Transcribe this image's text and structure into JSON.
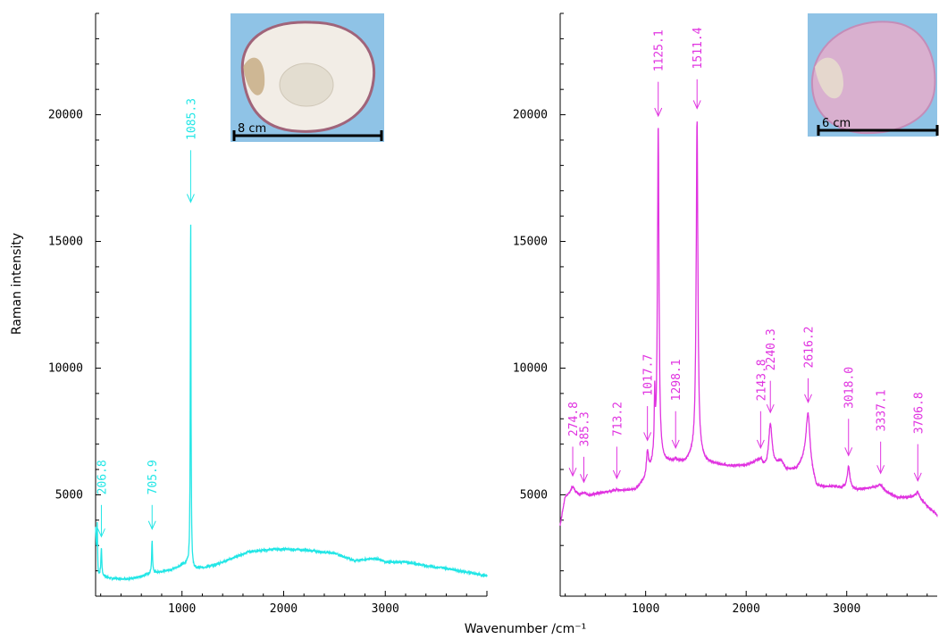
{
  "chart_data": [
    {
      "type": "line",
      "color": "#22e6e6",
      "xlim": [
        150,
        4000
      ],
      "ylim": [
        1000,
        24000
      ],
      "xticks": [
        1000,
        2000,
        3000
      ],
      "yticks": [
        5000,
        10000,
        15000,
        20000
      ],
      "ylabel": "Raman intensity",
      "xlabel": "",
      "inset_scale_label": "8 cm",
      "baseline": [
        [
          150,
          3600
        ],
        [
          165,
          1700
        ],
        [
          200,
          1850
        ],
        [
          215,
          1800
        ],
        [
          300,
          1700
        ],
        [
          500,
          1680
        ],
        [
          700,
          1900
        ],
        [
          900,
          2050
        ],
        [
          1050,
          2300
        ],
        [
          1110,
          2050
        ],
        [
          1300,
          2200
        ],
        [
          1500,
          2500
        ],
        [
          1650,
          2750
        ],
        [
          1900,
          2850
        ],
        [
          2100,
          2850
        ],
        [
          2300,
          2780
        ],
        [
          2500,
          2700
        ],
        [
          2700,
          2400
        ],
        [
          2900,
          2500
        ],
        [
          3000,
          2350
        ],
        [
          3200,
          2350
        ],
        [
          3400,
          2200
        ],
        [
          3600,
          2100
        ],
        [
          3800,
          1950
        ],
        [
          4000,
          1800
        ]
      ],
      "peaks": [
        {
          "x": 166,
          "y": 3900,
          "w": 4
        },
        {
          "x": 206.8,
          "y": 2900,
          "w": 5
        },
        {
          "x": 705.9,
          "y": 3200,
          "w": 5
        },
        {
          "x": 1085.3,
          "y": 16100,
          "w": 4
        }
      ],
      "annotations": [
        {
          "x": 206.8,
          "label": "206.8",
          "label_y": 5000
        },
        {
          "x": 705.9,
          "label": "705.9",
          "label_y": 5000
        },
        {
          "x": 1085.3,
          "label": "1085.3",
          "label_y": 19000
        }
      ]
    },
    {
      "type": "line",
      "color": "#e033e0",
      "xlim": [
        150,
        3900
      ],
      "ylim": [
        1000,
        24000
      ],
      "xticks": [
        1000,
        2000,
        3000
      ],
      "yticks": [
        5000,
        10000,
        15000,
        20000
      ],
      "ylabel": "",
      "xlabel": "Wavenumber /cm⁻¹",
      "inset_scale_label": "6 cm",
      "baseline": [
        [
          150,
          3800
        ],
        [
          200,
          4900
        ],
        [
          400,
          4950
        ],
        [
          600,
          5100
        ],
        [
          900,
          5200
        ],
        [
          1000,
          5600
        ],
        [
          1050,
          6000
        ],
        [
          1100,
          6500
        ],
        [
          1200,
          6300
        ],
        [
          1400,
          6300
        ],
        [
          1500,
          6700
        ],
        [
          1600,
          6300
        ],
        [
          1800,
          6150
        ],
        [
          2000,
          6150
        ],
        [
          2100,
          6300
        ],
        [
          2200,
          6000
        ],
        [
          2350,
          6300
        ],
        [
          2400,
          6000
        ],
        [
          2500,
          6000
        ],
        [
          2600,
          6500
        ],
        [
          2700,
          5300
        ],
        [
          2900,
          5300
        ],
        [
          3100,
          5200
        ],
        [
          3300,
          5300
        ],
        [
          3500,
          4900
        ],
        [
          3700,
          4900
        ],
        [
          3900,
          4200
        ]
      ],
      "peaks": [
        {
          "x": 274.8,
          "y": 5300,
          "w": 30
        },
        {
          "x": 385.3,
          "y": 5050,
          "w": 25
        },
        {
          "x": 713.2,
          "y": 5200,
          "w": 30
        },
        {
          "x": 1017.7,
          "y": 6700,
          "w": 12
        },
        {
          "x": 1090,
          "y": 8700,
          "w": 5
        },
        {
          "x": 1125.1,
          "y": 19500,
          "w": 9
        },
        {
          "x": 1298.1,
          "y": 6400,
          "w": 10
        },
        {
          "x": 1511.4,
          "y": 19800,
          "w": 10
        },
        {
          "x": 2143.8,
          "y": 6400,
          "w": 20
        },
        {
          "x": 2240.3,
          "y": 7800,
          "w": 20
        },
        {
          "x": 2616.2,
          "y": 8200,
          "w": 22
        },
        {
          "x": 3018.0,
          "y": 6100,
          "w": 16
        },
        {
          "x": 3337.1,
          "y": 5400,
          "w": 22
        },
        {
          "x": 3706.8,
          "y": 5100,
          "w": 25
        }
      ],
      "annotations": [
        {
          "x": 274.8,
          "label": "274.8",
          "label_y": 7300
        },
        {
          "x": 385.3,
          "label": "385.3",
          "label_y": 6900
        },
        {
          "x": 713.2,
          "label": "713.2",
          "label_y": 7300
        },
        {
          "x": 1017.7,
          "label": "1017.7",
          "label_y": 8900
        },
        {
          "x": 1125.1,
          "label": "1125.1",
          "label_y": 21700
        },
        {
          "x": 1298.1,
          "label": "1298.1",
          "label_y": 8700
        },
        {
          "x": 1511.4,
          "label": "1511.4",
          "label_y": 21800
        },
        {
          "x": 2143.8,
          "label": "2143.8",
          "label_y": 8700
        },
        {
          "x": 2240.3,
          "label": "2240.3",
          "label_y": 9900
        },
        {
          "x": 2616.2,
          "label": "2616.2",
          "label_y": 10000
        },
        {
          "x": 3018.0,
          "label": "3018.0",
          "label_y": 8400
        },
        {
          "x": 3337.1,
          "label": "3337.1",
          "label_y": 7500
        },
        {
          "x": 3706.8,
          "label": "3706.8",
          "label_y": 7400
        }
      ]
    }
  ]
}
